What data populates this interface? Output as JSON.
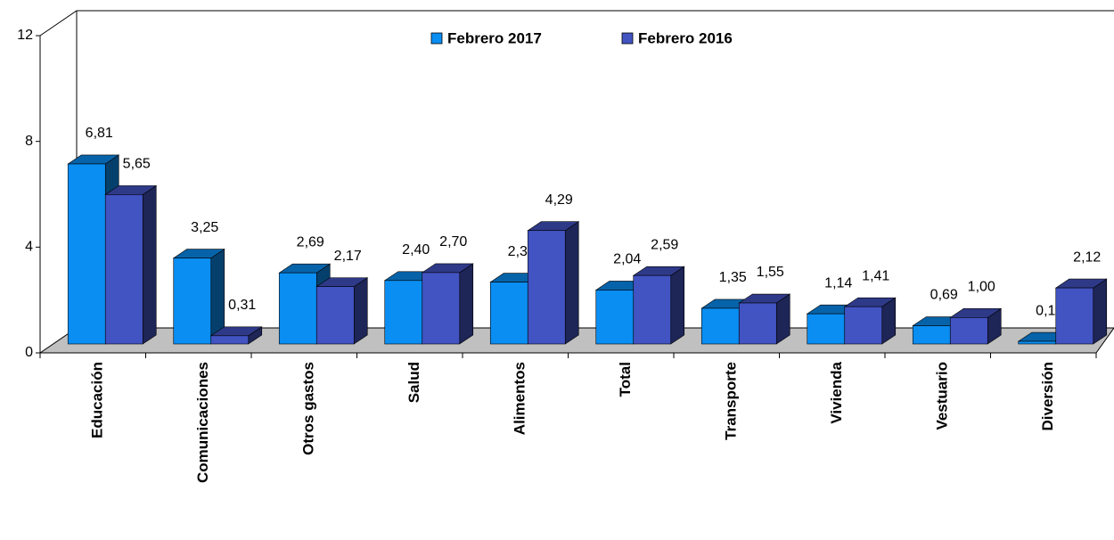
{
  "chart_data": {
    "type": "bar3d",
    "categories": [
      "Educación",
      "Comunicaciones",
      "Otros gastos",
      "Salud",
      "Alimentos",
      "Total",
      "Transporte",
      "Vivienda",
      "Vestuario",
      "Diversión"
    ],
    "series": [
      {
        "name": "Febrero 2017",
        "color": "#0a8ef2",
        "values": [
          6.81,
          3.25,
          2.69,
          2.4,
          2.34,
          2.04,
          1.35,
          1.14,
          0.69,
          0.1
        ],
        "value_labels": [
          "6,81",
          "3,25",
          "2,69",
          "2,40",
          "2,34",
          "2,04",
          "1,35",
          "1,14",
          "0,69",
          "0,10"
        ]
      },
      {
        "name": "Febrero 2016",
        "color": "#4253c2",
        "values": [
          5.65,
          0.31,
          2.17,
          2.7,
          4.29,
          2.59,
          1.55,
          1.41,
          1.0,
          2.12
        ],
        "value_labels": [
          "5,65",
          "0,31",
          "2,17",
          "2,70",
          "4,29",
          "2,59",
          "1,55",
          "1,41",
          "1,00",
          "2,12"
        ]
      }
    ],
    "ylim": [
      0,
      12
    ],
    "yticks": [
      0,
      4,
      8,
      12
    ],
    "legend": "top"
  }
}
